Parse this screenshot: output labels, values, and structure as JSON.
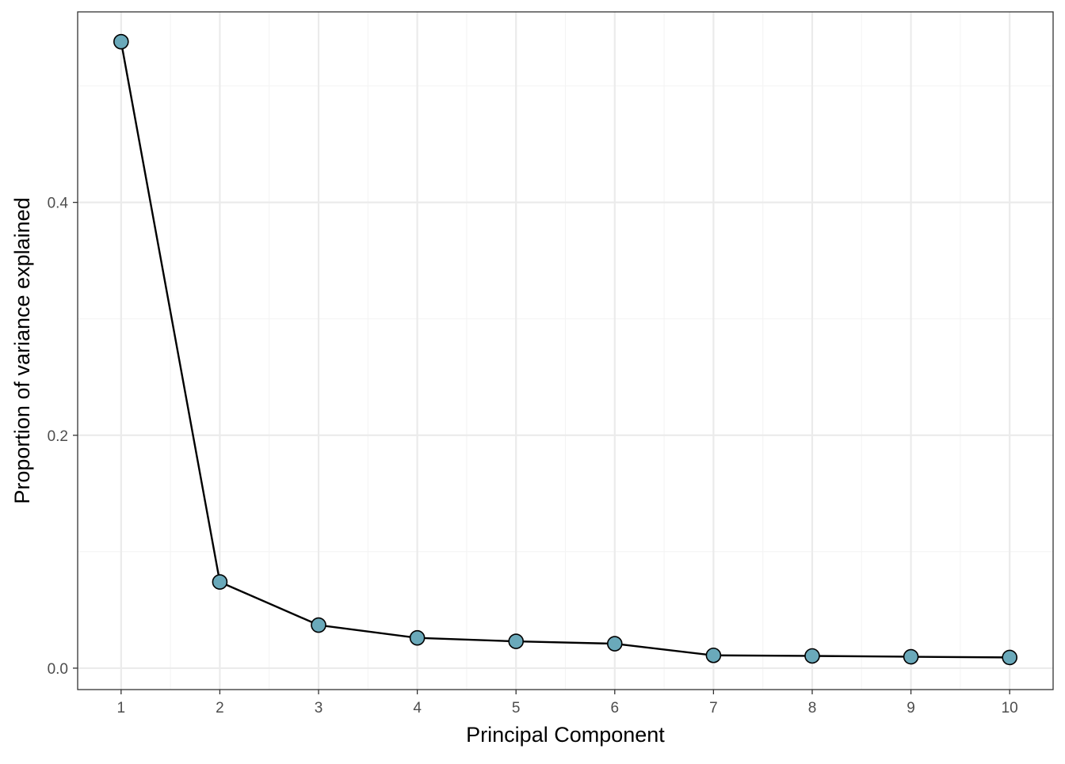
{
  "chart_data": {
    "type": "line",
    "title": "",
    "xlabel": "Principal Component",
    "ylabel": "Proportion of variance explained",
    "x": [
      1,
      2,
      3,
      4,
      5,
      6,
      7,
      8,
      9,
      10
    ],
    "xlim": [
      0.56,
      10.44
    ],
    "ylim": [
      -0.0184,
      0.5636
    ],
    "x_ticks": [
      1,
      2,
      3,
      4,
      5,
      6,
      7,
      8,
      9,
      10
    ],
    "x_tick_labels": [
      "1",
      "2",
      "3",
      "4",
      "5",
      "6",
      "7",
      "8",
      "9",
      "10"
    ],
    "y_ticks": [
      0.0,
      0.2,
      0.4
    ],
    "y_tick_labels": [
      "0.0",
      "0.2",
      "0.4"
    ],
    "grid": true,
    "legend": "none",
    "series": [
      {
        "values": [
          0.538,
          0.074,
          0.037,
          0.026,
          0.023,
          0.021,
          0.011,
          0.0105,
          0.0098,
          0.0092
        ],
        "line_color": "#000000",
        "marker_fill": "#6aa9ba",
        "marker_edge": "#000000"
      }
    ],
    "colors": {
      "background": "#ffffff",
      "grid_major": "#ebebeb",
      "grid_minor": "#f4f4f4",
      "panel_border": "#333333",
      "tick_text": "#4d4d4d"
    }
  }
}
